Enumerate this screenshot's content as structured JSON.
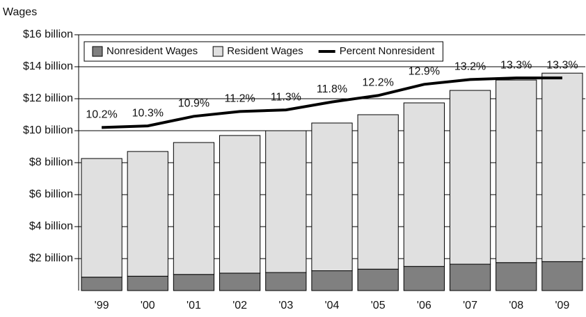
{
  "chart_data": {
    "type": "bar",
    "stacked": true,
    "y_axis_title": "Wages",
    "categories": [
      "'99",
      "'00",
      "'01",
      "'02",
      "'03",
      "'04",
      "'05",
      "'06",
      "'07",
      "'08",
      "'09"
    ],
    "series": [
      {
        "name": "Nonresident Wages",
        "color": "#808080",
        "values": [
          0.84,
          0.9,
          1.01,
          1.09,
          1.13,
          1.24,
          1.34,
          1.51,
          1.65,
          1.75,
          1.81
        ]
      },
      {
        "name": "Resident Wages",
        "color": "#e0e0e0",
        "values": [
          7.42,
          7.8,
          8.25,
          8.61,
          8.87,
          9.24,
          9.66,
          10.23,
          10.87,
          11.42,
          11.79
        ]
      },
      {
        "name": "Percent Nonresident",
        "type": "line",
        "color": "#000000",
        "values": [
          10.2,
          10.3,
          10.9,
          11.2,
          11.3,
          11.8,
          12.2,
          12.9,
          13.2,
          13.3,
          13.3
        ],
        "value_labels": [
          "10.2%",
          "10.3%",
          "10.9%",
          "11.2%",
          "11.3%",
          "11.8%",
          "12.2%",
          "12.9%",
          "13.2%",
          "13.3%",
          "13.3%"
        ]
      }
    ],
    "ylim": [
      0,
      16
    ],
    "yticks": [
      {
        "value": 2,
        "label": "$2 billion"
      },
      {
        "value": 4,
        "label": "$4 billion"
      },
      {
        "value": 6,
        "label": "$6 billion"
      },
      {
        "value": 8,
        "label": "$8 billion"
      },
      {
        "value": 10,
        "label": "$10 billion"
      },
      {
        "value": 12,
        "label": "$12 billion"
      },
      {
        "value": 14,
        "label": "$14 billion"
      },
      {
        "value": 16,
        "label": "$16 billion"
      }
    ],
    "grid": true,
    "legend": "top"
  }
}
